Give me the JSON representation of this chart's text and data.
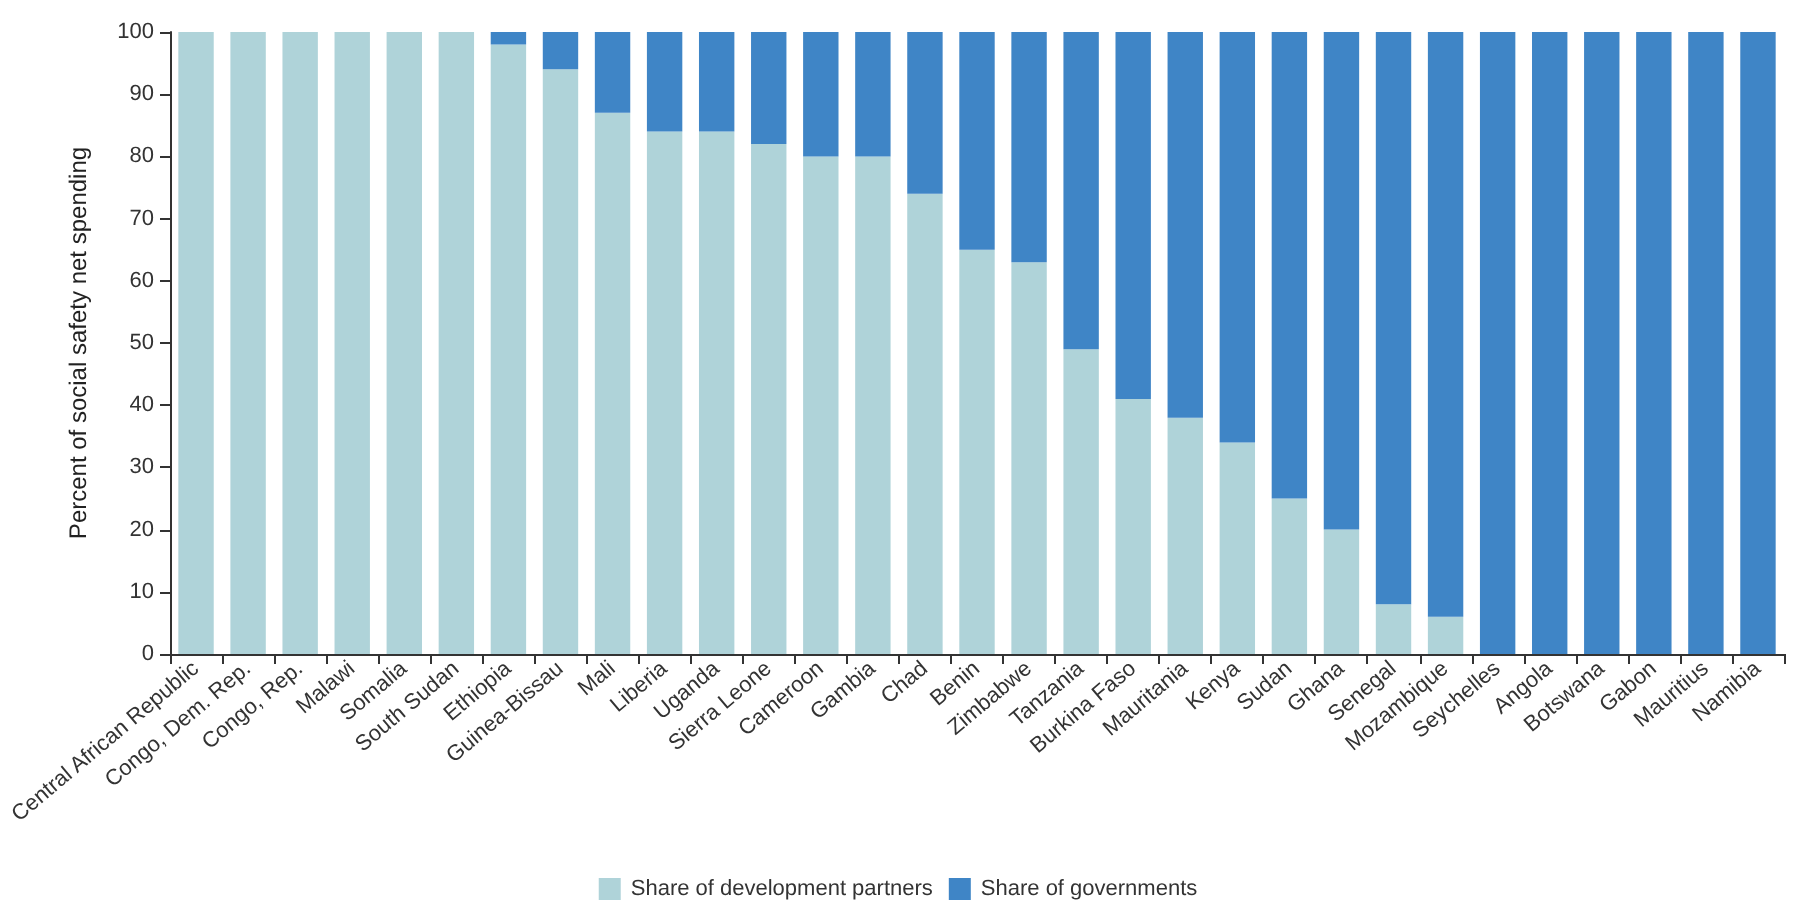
{
  "chart_data": {
    "type": "bar",
    "stacked": true,
    "ylabel": "Percent of social safety net spending",
    "categories": [
      "Central African Republic",
      "Congo, Dem. Rep.",
      "Congo, Rep.",
      "Malawi",
      "Somalia",
      "South Sudan",
      "Ethiopia",
      "Guinea-Bissau",
      "Mali",
      "Liberia",
      "Uganda",
      "Sierra Leone",
      "Cameroon",
      "Gambia",
      "Chad",
      "Benin",
      "Zimbabwe",
      "Tanzania",
      "Burkina Faso",
      "Mauritania",
      "Kenya",
      "Sudan",
      "Ghana",
      "Senegal",
      "Mozambique",
      "Seychelles",
      "Angola",
      "Botswana",
      "Gabon",
      "Mauritius",
      "Namibia"
    ],
    "series": [
      {
        "name": "Share of development partners",
        "color": "#afd3d9",
        "values": [
          100,
          100,
          100,
          100,
          100,
          100,
          98,
          94,
          87,
          84,
          84,
          82,
          80,
          80,
          74,
          65,
          63,
          49,
          41,
          38,
          34,
          25,
          20,
          8,
          6,
          0,
          0,
          0,
          0,
          0,
          0
        ]
      },
      {
        "name": "Share of governments",
        "color": "#3f85c6",
        "values": [
          0,
          0,
          0,
          0,
          0,
          0,
          2,
          6,
          13,
          16,
          16,
          18,
          20,
          20,
          26,
          35,
          37,
          51,
          59,
          62,
          66,
          75,
          80,
          92,
          94,
          100,
          100,
          100,
          100,
          100,
          100
        ]
      }
    ],
    "ylim": [
      0,
      100
    ],
    "yticks": [
      0,
      10,
      20,
      30,
      40,
      50,
      60,
      70,
      80,
      90,
      100
    ],
    "grid": false,
    "legend": "bottom"
  }
}
